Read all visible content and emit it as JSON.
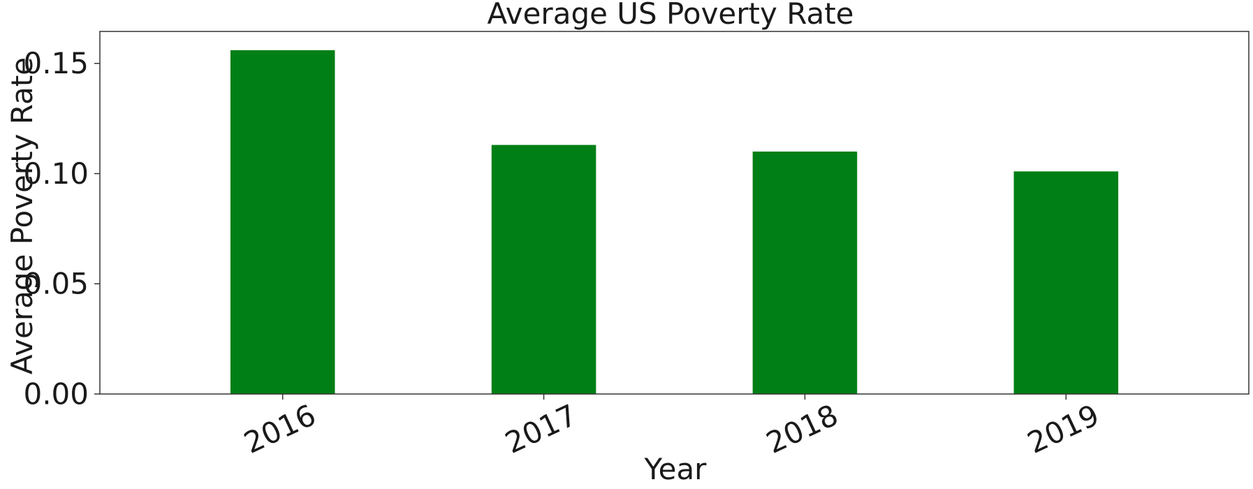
{
  "chart_data": {
    "type": "bar",
    "title": "Average US Poverty Rate",
    "xlabel": "Year",
    "ylabel": "Average Poverty Rate",
    "categories": [
      "2016",
      "2017",
      "2018",
      "2019"
    ],
    "values": [
      0.156,
      0.113,
      0.11,
      0.101
    ],
    "ylim": [
      0,
      0.1645
    ],
    "yticks": [
      0.0,
      0.05,
      0.1,
      0.15
    ],
    "ytick_labels": [
      "0.00",
      "0.05",
      "0.10",
      "0.15"
    ],
    "xtick_rotation_deg": 25,
    "bar_color": "#007f16",
    "grid": false,
    "legend": "none"
  }
}
